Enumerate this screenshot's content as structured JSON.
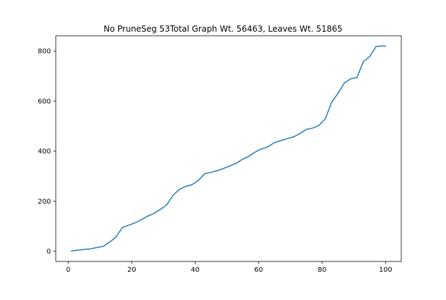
{
  "chart_data": {
    "type": "line",
    "title": "No PruneSeg 53Total Graph Wt. 56463, Leaves Wt. 51865",
    "xlabel": "",
    "ylabel": "",
    "xlim": [
      -3.95,
      104.95
    ],
    "ylim": [
      -41,
      861
    ],
    "grid": false,
    "x_ticks": [
      0,
      20,
      40,
      60,
      80,
      100
    ],
    "x_tick_labels": [
      "0",
      "20",
      "40",
      "60",
      "80",
      "100"
    ],
    "y_ticks": [
      0,
      200,
      400,
      600,
      800
    ],
    "y_tick_labels": [
      "0",
      "200",
      "400",
      "600",
      "800"
    ],
    "series": [
      {
        "color": "#1f77b4",
        "x": [
          1,
          3,
          5,
          7,
          9,
          11,
          13,
          15,
          17,
          19,
          21,
          23,
          25,
          27,
          29,
          31,
          33,
          35,
          37,
          39,
          41,
          43,
          45,
          47,
          49,
          51,
          53,
          55,
          57,
          59,
          61,
          63,
          65,
          67,
          69,
          71,
          73,
          75,
          77,
          79,
          81,
          83,
          85,
          87,
          89,
          91,
          93,
          95,
          97,
          99,
          100
        ],
        "y": [
          1,
          4,
          7,
          9,
          15,
          19,
          36,
          56,
          94,
          104,
          113,
          126,
          140,
          151,
          167,
          185,
          223,
          247,
          259,
          266,
          283,
          310,
          315,
          322,
          331,
          341,
          352,
          368,
          380,
          397,
          409,
          418,
          434,
          442,
          450,
          457,
          470,
          487,
          492,
          503,
          529,
          595,
          631,
          672,
          689,
          694,
          758,
          778,
          818,
          820,
          820
        ]
      }
    ]
  }
}
